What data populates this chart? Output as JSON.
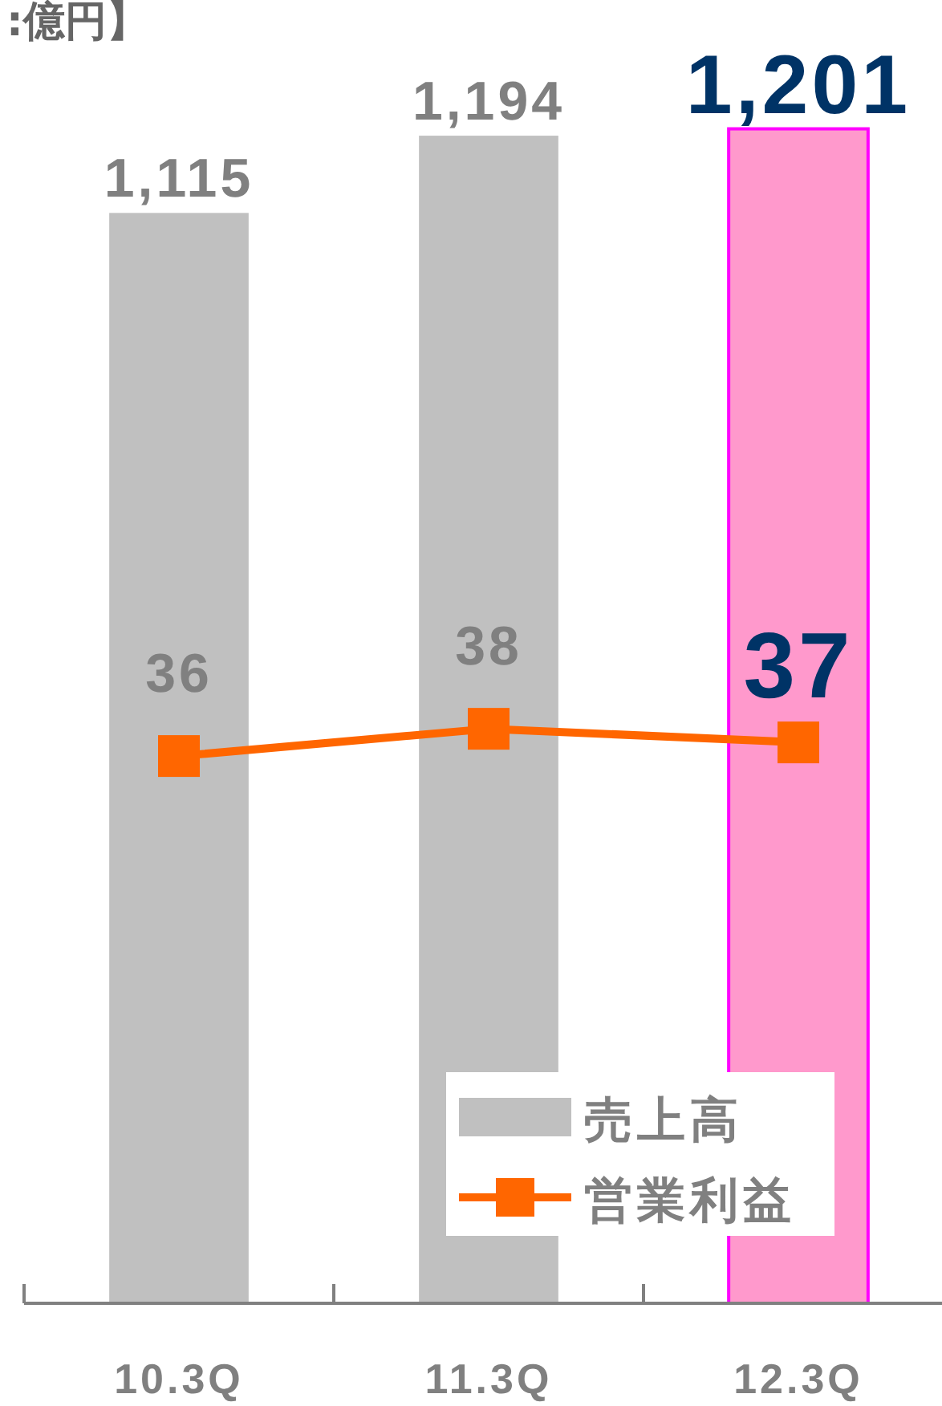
{
  "chart_data": {
    "type": "bar",
    "title": ":億円】",
    "categories": [
      "10.3Q",
      "11.3Q",
      "12.3Q"
    ],
    "series": [
      {
        "name": "売上高",
        "color": "#c0c0c0",
        "colors": [
          "#c0c0c0",
          "#c0c0c0",
          "#ff99cc"
        ],
        "values": [
          1115,
          1194,
          1201
        ],
        "value_labels": [
          "1,115",
          "1,194",
          "1,201"
        ]
      },
      {
        "name": "営業利益",
        "type": "line",
        "axis": "y2",
        "color": "#ff6600",
        "marker": "square",
        "values": [
          36,
          38,
          37
        ]
      }
    ],
    "tick_labels": "x",
    "data_labels": true,
    "legend": "bottom right"
  }
}
